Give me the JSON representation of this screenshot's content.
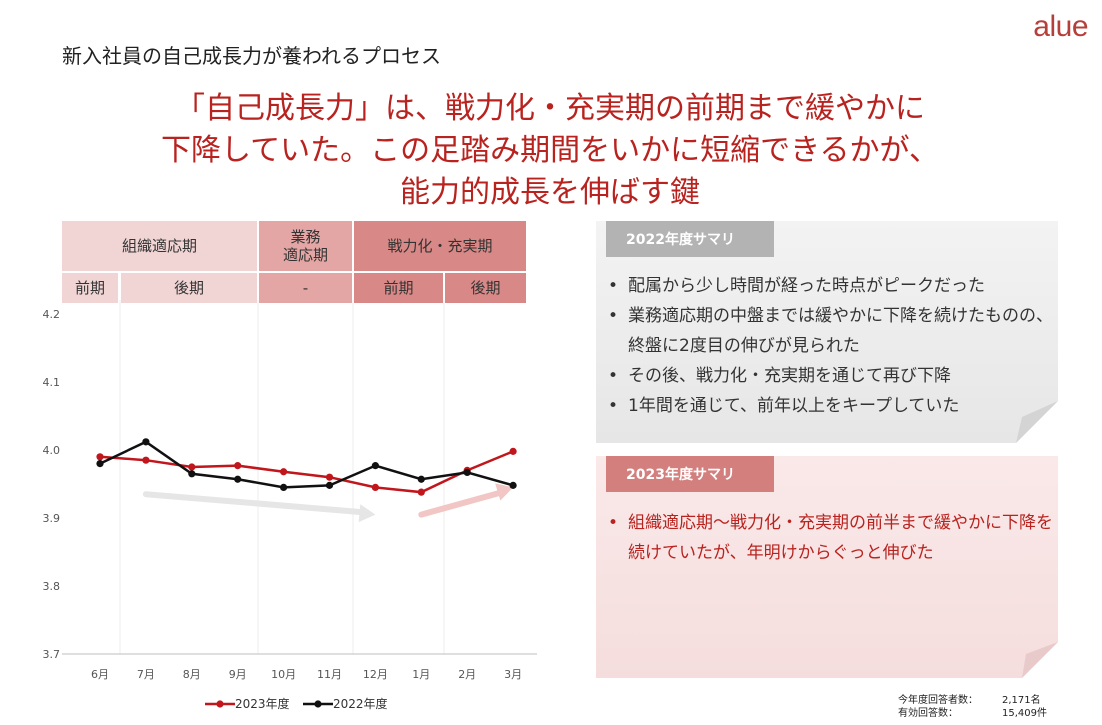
{
  "brand": {
    "logo": "alue"
  },
  "page_title": "新入社員の自己成長力が養われるプロセス",
  "headline": {
    "line1": "「自己成長力」は、戦力化・充実期の前期まで緩やかに",
    "line2": "下降していた。この足踏み期間をいかに短縮できるかが、",
    "line3": "能力的成長を伸ばす鍵"
  },
  "phases": {
    "soshiki": "組織適応期",
    "gyomu_line1": "業務",
    "gyomu_line2": "適応期",
    "senryoku": "戦力化・充実期",
    "sub_zenki_1": "前期",
    "sub_koki_1": "後期",
    "sub_dash": "-",
    "sub_zenki_2": "前期",
    "sub_koki_2": "後期"
  },
  "chart_data": {
    "type": "line",
    "categories": [
      "6月",
      "7月",
      "8月",
      "9月",
      "10月",
      "11月",
      "12月",
      "1月",
      "2月",
      "3月"
    ],
    "y_ticks": [
      "4.2",
      "4.1",
      "4.0",
      "3.9",
      "3.8",
      "3.7"
    ],
    "ylim": [
      3.7,
      4.2
    ],
    "series": [
      {
        "name": "2023年度",
        "color": "#c0161c",
        "values": [
          3.99,
          3.985,
          3.975,
          3.977,
          3.968,
          3.96,
          3.945,
          3.938,
          3.97,
          3.998
        ]
      },
      {
        "name": "2022年度",
        "color": "#111111",
        "values": [
          3.98,
          4.012,
          3.965,
          3.957,
          3.945,
          3.948,
          3.977,
          3.957,
          3.967,
          3.948
        ]
      }
    ],
    "trend_arrows": [
      {
        "color": "#e6e6e6",
        "from": [
          7,
          3.935
        ],
        "to": [
          12,
          3.905
        ]
      },
      {
        "color": "#f1c6c4",
        "from": [
          1,
          3.905
        ],
        "to": [
          3,
          3.945
        ]
      }
    ]
  },
  "summary_2022": {
    "title": "2022年度サマリ",
    "items": [
      "配属から少し時間が経った時点がピークだった",
      "業務適応期の中盤までは緩やかに下降を続けたものの、終盤に2度目の伸びが見られた",
      "その後、戦力化・充実期を通じて再び下降",
      "1年間を通じて、前年以上をキープしていた"
    ]
  },
  "summary_2023": {
    "title": "2023年度サマリ",
    "items": [
      "組織適応期～戦力化・充実期の前半まで緩やかに下降を続けていたが、年明けからぐっと伸びた"
    ]
  },
  "footnote": {
    "label1": "今年度回答者数：",
    "value1": "2,171名",
    "label2": "有効回答数：",
    "value2": "15,409件"
  },
  "colors": {
    "accent": "#b8231f",
    "series2023": "#c0161c",
    "series2022": "#111111"
  }
}
